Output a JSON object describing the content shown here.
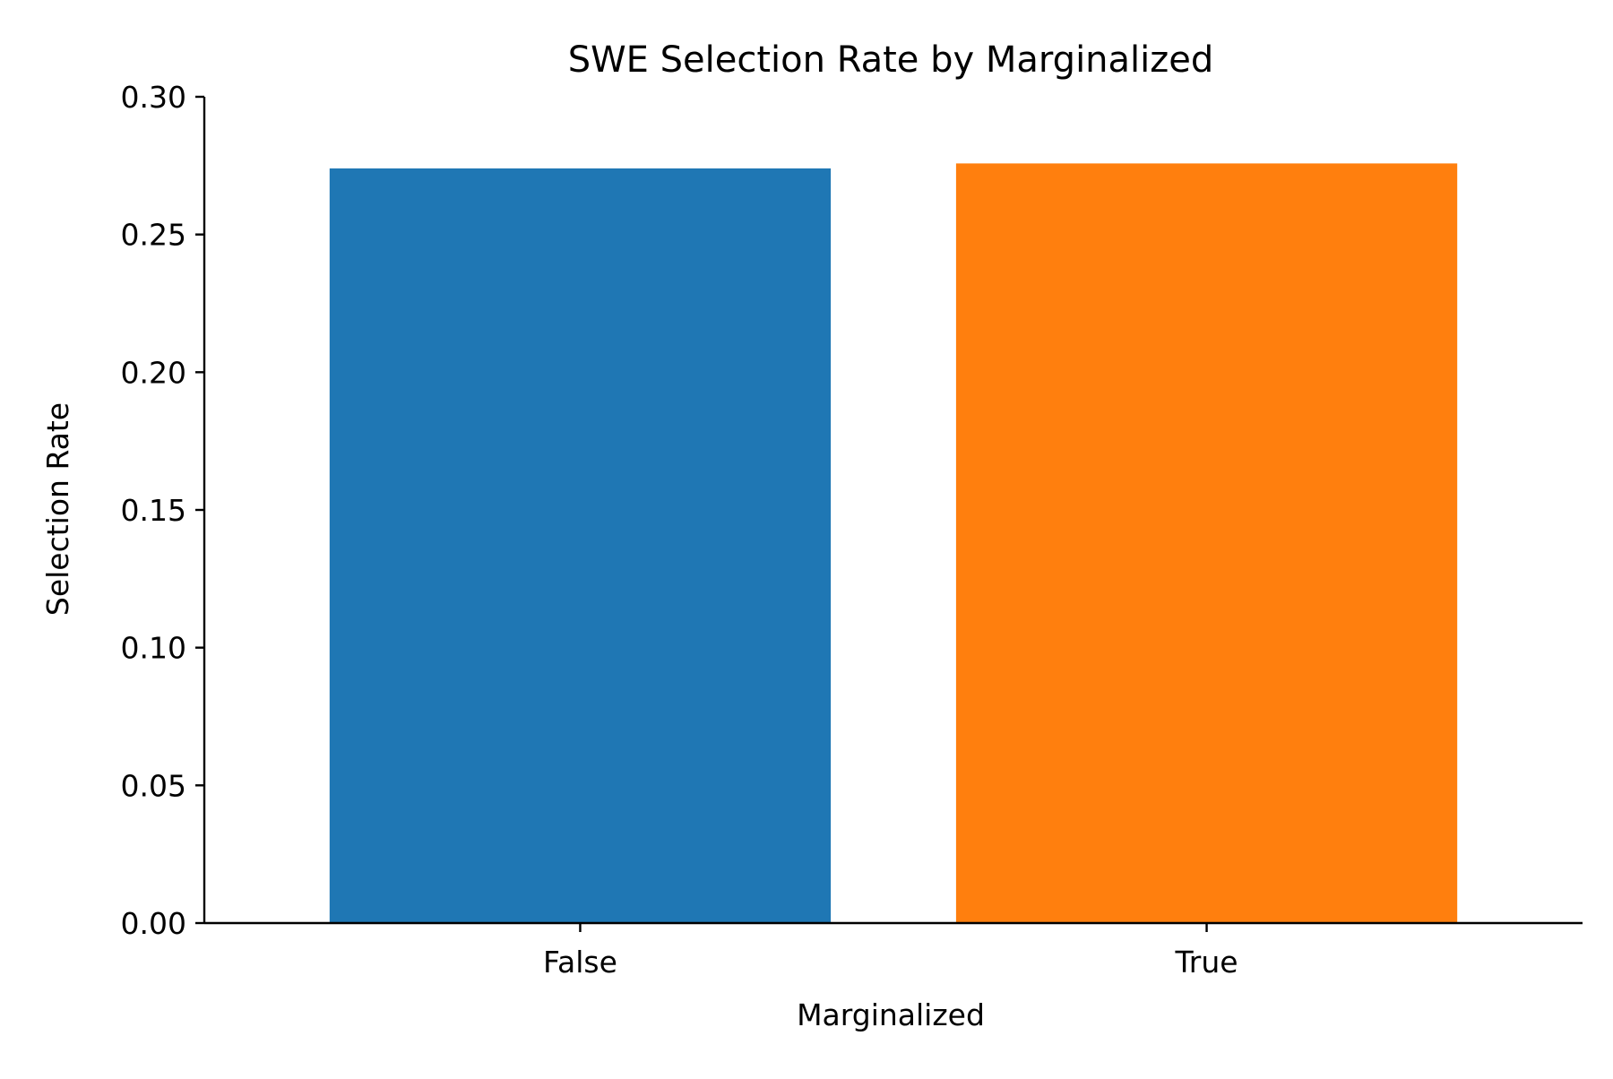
{
  "chart_data": {
    "type": "bar",
    "title": "SWE Selection Rate by Marginalized",
    "xlabel": "Marginalized",
    "ylabel": "Selection Rate",
    "categories": [
      "False",
      "True"
    ],
    "values": [
      0.274,
      0.2758
    ],
    "colors": [
      "#1f77b4",
      "#ff7f0e"
    ],
    "ylim": [
      0,
      0.3
    ],
    "yticks": [
      0.0,
      0.05,
      0.1,
      0.15,
      0.2,
      0.25,
      0.3
    ],
    "ytick_labels": [
      "0.00",
      "0.05",
      "0.10",
      "0.15",
      "0.20",
      "0.25",
      "0.30"
    ],
    "grid": false,
    "legend": false
  }
}
